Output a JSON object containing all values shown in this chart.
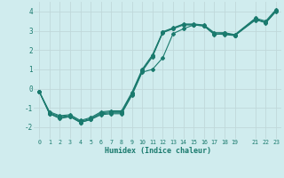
{
  "xlabel": "Humidex (Indice chaleur)",
  "bg_color": "#d0ecee",
  "grid_color": "#c0d8da",
  "line_color": "#1a7a6e",
  "xlim": [
    -0.5,
    23.5
  ],
  "ylim": [
    -2.6,
    4.5
  ],
  "xtick_labels": [
    "0",
    "1",
    "2",
    "3",
    "4",
    "5",
    "6",
    "7",
    "8",
    "9",
    "10",
    "11",
    "12",
    "13",
    "14",
    "15",
    "16",
    "17",
    "18",
    "19",
    "21",
    "22",
    "23"
  ],
  "xtick_vals": [
    0,
    1,
    2,
    3,
    4,
    5,
    6,
    7,
    8,
    9,
    10,
    11,
    12,
    13,
    14,
    15,
    16,
    17,
    18,
    19,
    21,
    22,
    23
  ],
  "yticks": [
    -2,
    -1,
    0,
    1,
    2,
    3,
    4
  ],
  "series": [
    [
      [
        -0.15,
        -1.3,
        -1.5,
        -1.45,
        -1.75,
        -1.6,
        -1.3,
        -1.25,
        -1.25,
        -0.3,
        0.9,
        1.65,
        2.9,
        3.1,
        3.3,
        3.3,
        3.25,
        2.8,
        2.85,
        2.75,
        3.6,
        3.4,
        4.0
      ]
    ],
    [
      [
        -0.15,
        -1.3,
        -1.55,
        -1.45,
        -1.75,
        -1.6,
        -1.35,
        -1.3,
        -1.3,
        -0.35,
        0.85,
        1.0,
        1.6,
        2.85,
        3.1,
        3.3,
        3.25,
        2.85,
        2.8,
        2.75,
        3.55,
        3.45,
        4.05
      ]
    ],
    [
      [
        -0.15,
        -1.25,
        -1.45,
        -1.4,
        -1.7,
        -1.55,
        -1.25,
        -1.2,
        -1.2,
        -0.25,
        0.95,
        1.7,
        2.92,
        3.12,
        3.32,
        3.32,
        3.27,
        2.82,
        2.87,
        2.77,
        3.62,
        3.42,
        4.02
      ]
    ],
    [
      [
        -0.15,
        -1.2,
        -1.4,
        -1.35,
        -1.65,
        -1.5,
        -1.2,
        -1.15,
        -1.15,
        -0.2,
        1.0,
        1.75,
        2.95,
        3.15,
        3.35,
        3.35,
        3.3,
        2.9,
        2.9,
        2.8,
        3.65,
        3.5,
        4.1
      ]
    ]
  ],
  "marker_size": 2.0,
  "linewidth": 0.8
}
